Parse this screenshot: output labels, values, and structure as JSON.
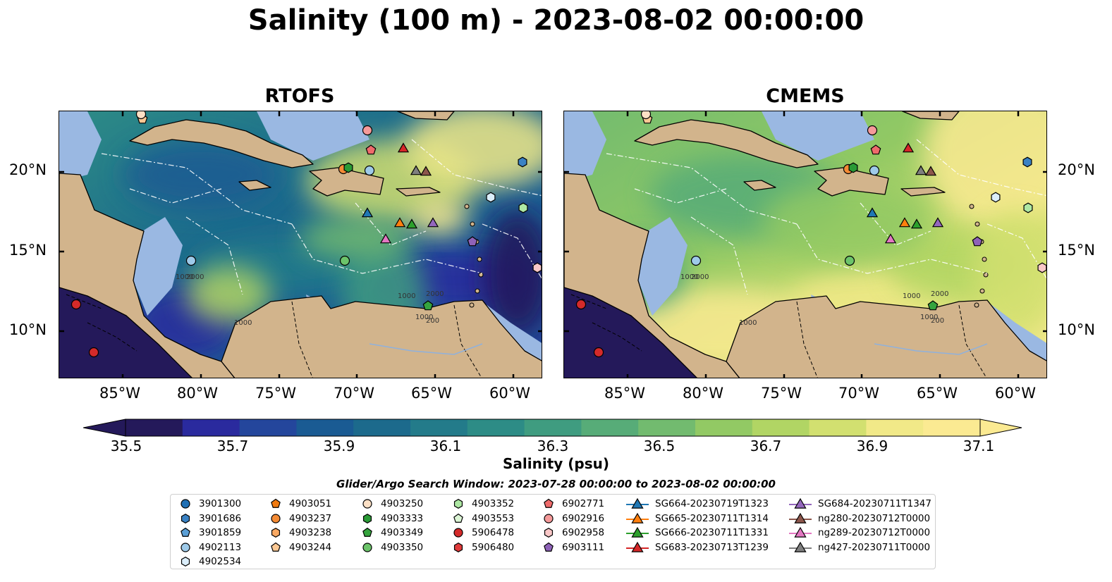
{
  "title": "Salinity (100 m) - 2023-08-02 00:00:00",
  "panels": [
    {
      "key": "rtofs",
      "title": "RTOFS"
    },
    {
      "key": "cmems",
      "title": "CMEMS"
    }
  ],
  "axes": {
    "lon_ticks": [
      "85°W",
      "80°W",
      "75°W",
      "70°W",
      "65°W",
      "60°W"
    ],
    "lat_ticks": [
      "20°N",
      "15°N",
      "10°N"
    ]
  },
  "colorbar": {
    "label": "Salinity (psu)",
    "ticks": [
      "35.5",
      "35.7",
      "35.9",
      "36.1",
      "36.3",
      "36.5",
      "36.7",
      "36.9",
      "37.1"
    ],
    "colors": [
      "#24195a",
      "#2a2a9e",
      "#24469c",
      "#1a5b93",
      "#1c6a8c",
      "#237b8a",
      "#2d8c86",
      "#3f9c80",
      "#57ac78",
      "#72bb6f",
      "#92c964",
      "#b1d564",
      "#d2e070",
      "#f1e988",
      "#fbea92"
    ],
    "extend": "both"
  },
  "contour_labels": [
    "2000",
    "1000",
    "1000",
    "2000",
    "1000",
    "1000",
    "200"
  ],
  "legend": {
    "title": "Glider/Argo Search Window: 2023-07-28 00:00:00 to 2023-08-02 00:00:00",
    "items": [
      {
        "label": "3901300",
        "marker": "circle",
        "color": "#1f6fb4"
      },
      {
        "label": "3901686",
        "marker": "hexagon",
        "color": "#3a82c4"
      },
      {
        "label": "3901859",
        "marker": "pentagon",
        "color": "#5a9fd6"
      },
      {
        "label": "4902113",
        "marker": "circle",
        "color": "#9ecae9"
      },
      {
        "label": "4902534",
        "marker": "hexagon",
        "color": "#dbeefb"
      },
      {
        "label": "4903051",
        "marker": "pentagon",
        "color": "#f07a10"
      },
      {
        "label": "4903237",
        "marker": "circle",
        "color": "#f48b35"
      },
      {
        "label": "4903238",
        "marker": "hexagon",
        "color": "#f8a862"
      },
      {
        "label": "4903244",
        "marker": "pentagon",
        "color": "#fbc894"
      },
      {
        "label": "4903250",
        "marker": "circle",
        "color": "#fde0c5"
      },
      {
        "label": "4903333",
        "marker": "hexagon",
        "color": "#2a9a36"
      },
      {
        "label": "4903349",
        "marker": "pentagon",
        "color": "#35a43e"
      },
      {
        "label": "4903350",
        "marker": "circle",
        "color": "#6cc46a"
      },
      {
        "label": "4903352",
        "marker": "hexagon",
        "color": "#aee8a4"
      },
      {
        "label": "4903553",
        "marker": "pentagon",
        "color": "#dcf5d5"
      },
      {
        "label": "5906478",
        "marker": "circle",
        "color": "#d42a2a"
      },
      {
        "label": "5906480",
        "marker": "hexagon",
        "color": "#e03b3b"
      },
      {
        "label": "6902771",
        "marker": "pentagon",
        "color": "#ef6b6b"
      },
      {
        "label": "6902916",
        "marker": "circle",
        "color": "#f59a9a"
      },
      {
        "label": "6902958",
        "marker": "hexagon",
        "color": "#fac8c8"
      },
      {
        "label": "6903111",
        "marker": "pentagon",
        "color": "#8e62b8"
      },
      {
        "label": "SG664-20230719T1323",
        "marker": "triangle-line",
        "color": "#1f77b4"
      },
      {
        "label": "SG665-20230711T1314",
        "marker": "triangle-line",
        "color": "#ff7f0e"
      },
      {
        "label": "SG666-20230711T1331",
        "marker": "triangle-line",
        "color": "#2ca02c"
      },
      {
        "label": "SG683-20230713T1239",
        "marker": "triangle-line",
        "color": "#d62728"
      },
      {
        "label": "SG684-20230711T1347",
        "marker": "triangle-line",
        "color": "#9467bd"
      },
      {
        "label": "ng280-20230712T0000",
        "marker": "triangle-line",
        "color": "#8c564b"
      },
      {
        "label": "ng289-20230712T0000",
        "marker": "triangle-line",
        "color": "#e377c2"
      },
      {
        "label": "ng427-20230711T0000",
        "marker": "triangle-line",
        "color": "#7f7f7f"
      }
    ]
  },
  "colors": {
    "land": "#d2b48c",
    "shelf": "#9ab8e2",
    "pacific": "#24195a"
  }
}
